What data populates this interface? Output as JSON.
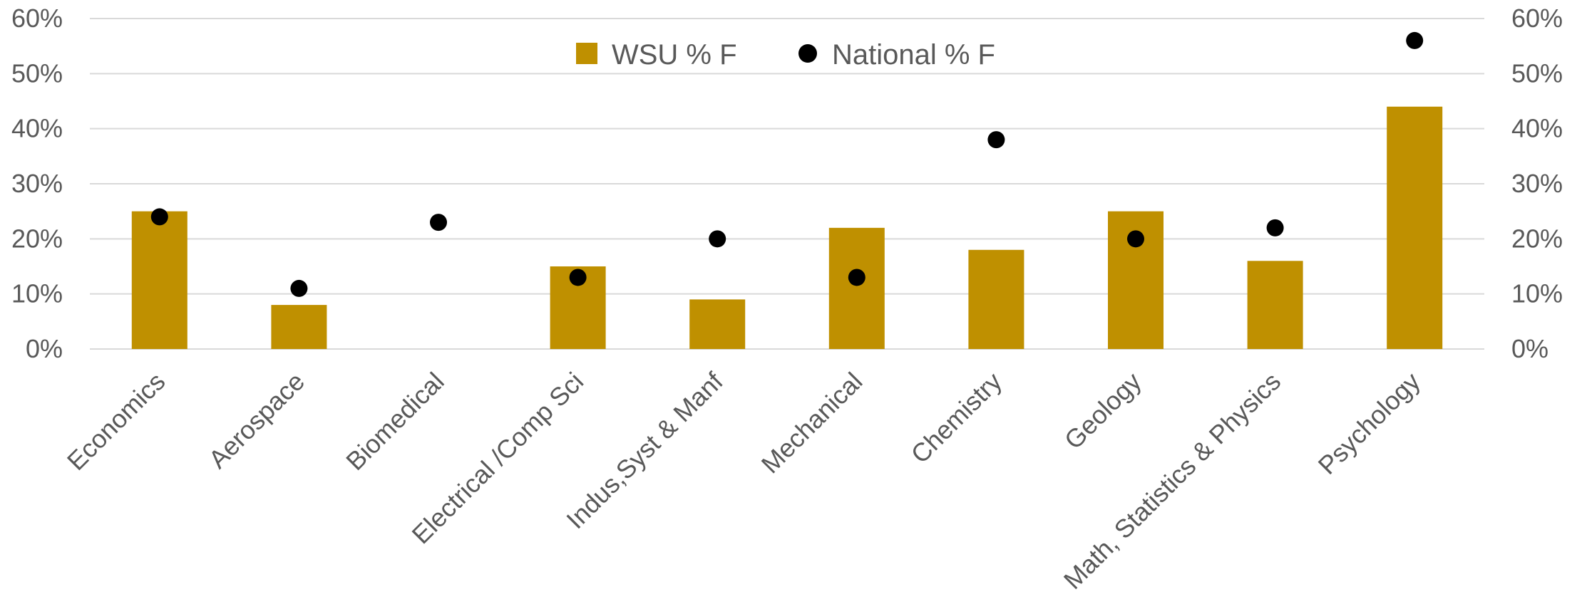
{
  "chart_data": {
    "type": "bar",
    "title": "",
    "xlabel": "",
    "ylabel": "",
    "categories": [
      "Economics",
      "Aerospace",
      "Biomedical",
      "Electrical /Comp Sci",
      "Indus,Syst & Manf",
      "Mechanical",
      "Chemistry",
      "Geology",
      "Math, Statistics & Physics",
      "Psychology"
    ],
    "series": [
      {
        "name": "WSU % F",
        "type": "bar",
        "color": "#bf9000",
        "values": [
          25,
          8,
          0,
          15,
          9,
          22,
          18,
          25,
          16,
          44
        ]
      },
      {
        "name": "National % F",
        "type": "scatter",
        "color": "#000000",
        "values": [
          24,
          11,
          23,
          13,
          20,
          13,
          38,
          20,
          22,
          56
        ]
      }
    ],
    "ylim": [
      0,
      60
    ],
    "yticks": [
      "0%",
      "10%",
      "20%",
      "30%",
      "40%",
      "50%",
      "60%"
    ],
    "ytick_values": [
      0,
      10,
      20,
      30,
      40,
      50,
      60
    ],
    "secondary_yticks": [
      "0%",
      "10%",
      "20%",
      "30%",
      "40%",
      "50%",
      "60%"
    ],
    "grid": true,
    "legend_position": "top-center"
  }
}
